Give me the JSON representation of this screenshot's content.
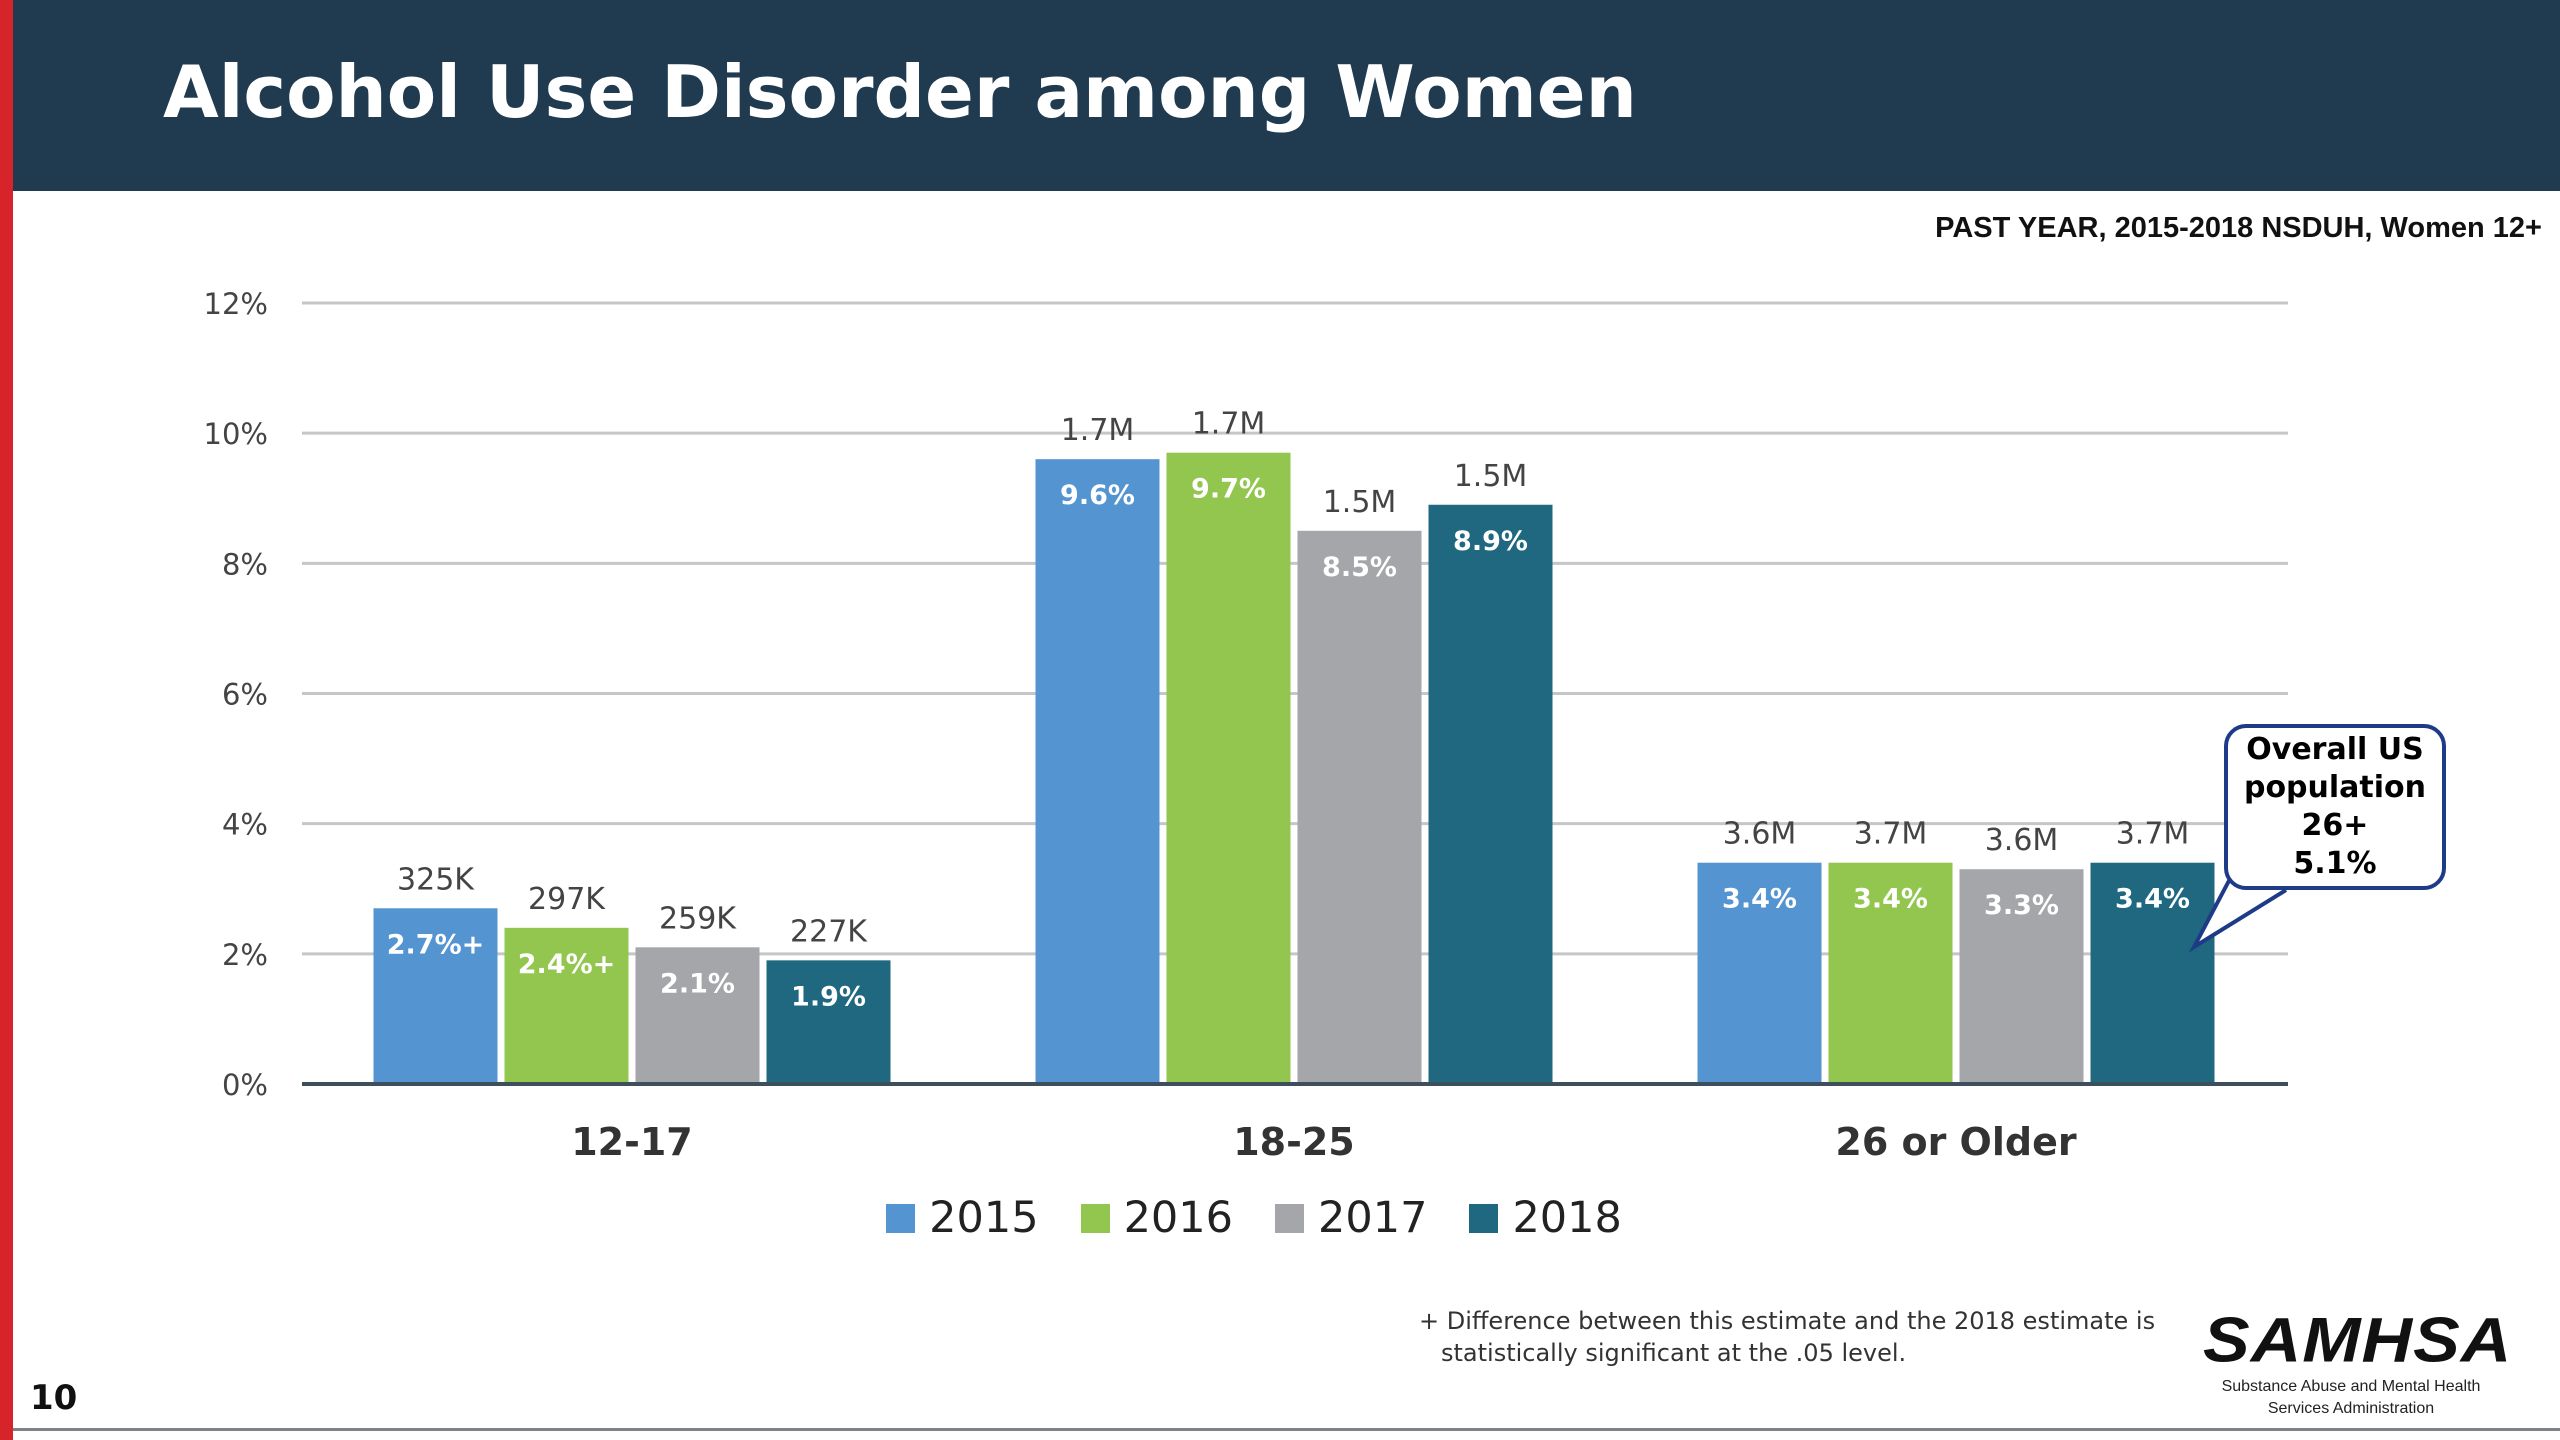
{
  "header": {
    "title": "Alcohol Use Disorder among Women"
  },
  "subtitle": "PAST YEAR, 2015-2018  NSDUH, Women 12+",
  "colors": {
    "header_bg": "#203a50",
    "accent_red": "#d7242b",
    "s2015": "#5394d1",
    "s2016": "#92c64e",
    "s2017": "#a4a6a9",
    "s2018": "#1f6880"
  },
  "chart_data": {
    "type": "bar",
    "categories": [
      "12-17",
      "18-25",
      "26 or Older"
    ],
    "series": [
      {
        "name": "2015",
        "color": "#5394d1",
        "values": [
          2.7,
          9.6,
          3.4
        ],
        "labels": [
          "2.7%+",
          "9.6%",
          "3.4%"
        ],
        "counts": [
          "325K",
          "1.7M",
          "3.6M"
        ]
      },
      {
        "name": "2016",
        "color": "#92c64e",
        "values": [
          2.4,
          9.7,
          3.4
        ],
        "labels": [
          "2.4%+",
          "9.7%",
          "3.4%"
        ],
        "counts": [
          "297K",
          "1.7M",
          "3.7M"
        ]
      },
      {
        "name": "2017",
        "color": "#a4a6a9",
        "values": [
          2.1,
          8.5,
          3.3
        ],
        "labels": [
          "2.1%",
          "8.5%",
          "3.3%"
        ],
        "counts": [
          "259K",
          "1.5M",
          "3.6M"
        ]
      },
      {
        "name": "2018",
        "color": "#1f6880",
        "values": [
          1.9,
          8.9,
          3.4
        ],
        "labels": [
          "1.9%",
          "8.9%",
          "3.4%"
        ],
        "counts": [
          "227K",
          "1.5M",
          "3.7M"
        ]
      }
    ],
    "yticks": [
      "0%",
      "2%",
      "4%",
      "6%",
      "8%",
      "10%",
      "12%"
    ],
    "ylim": [
      0,
      12
    ],
    "grid": true,
    "legend": "bottom-center"
  },
  "callout": {
    "lines": [
      "Overall US",
      "population",
      "26+",
      "5.1%"
    ]
  },
  "footnote": [
    "+ Difference between this estimate and the 2018 estimate is",
    "statistically significant at the .05 level."
  ],
  "logo": {
    "name": "SAMHSA",
    "subtitle_lines": [
      "Substance Abuse and Mental Health",
      "Services Administration"
    ]
  },
  "page_number": "10"
}
